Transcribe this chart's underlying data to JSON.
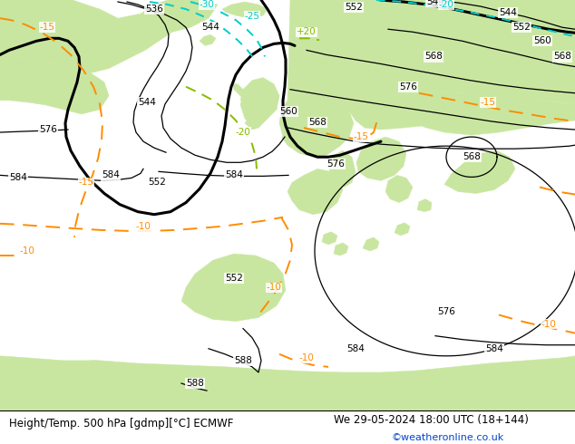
{
  "title_left": "Height/Temp. 500 hPa [gdmp][°C] ECMWF",
  "title_right": "We 29-05-2024 18:00 UTC (18+144)",
  "watermark": "©weatheronline.co.uk",
  "land_color": "#c8e6a0",
  "sea_color": "#d2d2d2",
  "coast_color": "#999999",
  "fig_width": 6.34,
  "fig_height": 4.9,
  "dpi": 100,
  "title_fontsize": 8.5,
  "watermark_fontsize": 8,
  "black": "#000000",
  "orange": "#ff8c00",
  "cyan": "#00cccc",
  "green_temp": "#88bb00",
  "lw_thick": 2.2,
  "lw_thin": 0.9,
  "lw_temp": 1.4
}
